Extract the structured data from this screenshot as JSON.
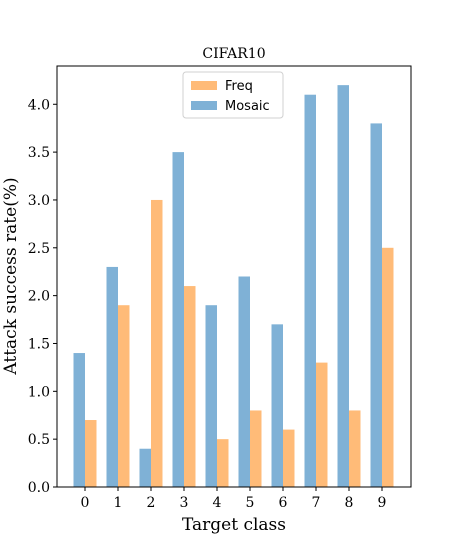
{
  "chart_data": {
    "type": "bar",
    "title": "CIFAR10",
    "xlabel": "Target class",
    "ylabel": "Attack success rate(%)",
    "categories": [
      "0",
      "1",
      "2",
      "3",
      "4",
      "5",
      "6",
      "7",
      "8",
      "9"
    ],
    "ylim": [
      0,
      4.4
    ],
    "yticks": [
      "0.0",
      "0.5",
      "1.0",
      "1.5",
      "2.0",
      "2.5",
      "3.0",
      "3.5",
      "4.0"
    ],
    "grid": false,
    "legend_position": "top-center",
    "series": [
      {
        "name": "Mosaic",
        "color": "#7fb1d6",
        "values": [
          1.4,
          2.3,
          0.4,
          3.5,
          1.9,
          2.2,
          1.7,
          4.1,
          4.2,
          3.8
        ]
      },
      {
        "name": "Freq",
        "color": "#ffbb78",
        "values": [
          0.7,
          1.9,
          3.0,
          2.1,
          0.5,
          0.8,
          0.6,
          1.3,
          0.8,
          2.5
        ]
      }
    ],
    "legend_order": [
      "Freq",
      "Mosaic"
    ]
  }
}
